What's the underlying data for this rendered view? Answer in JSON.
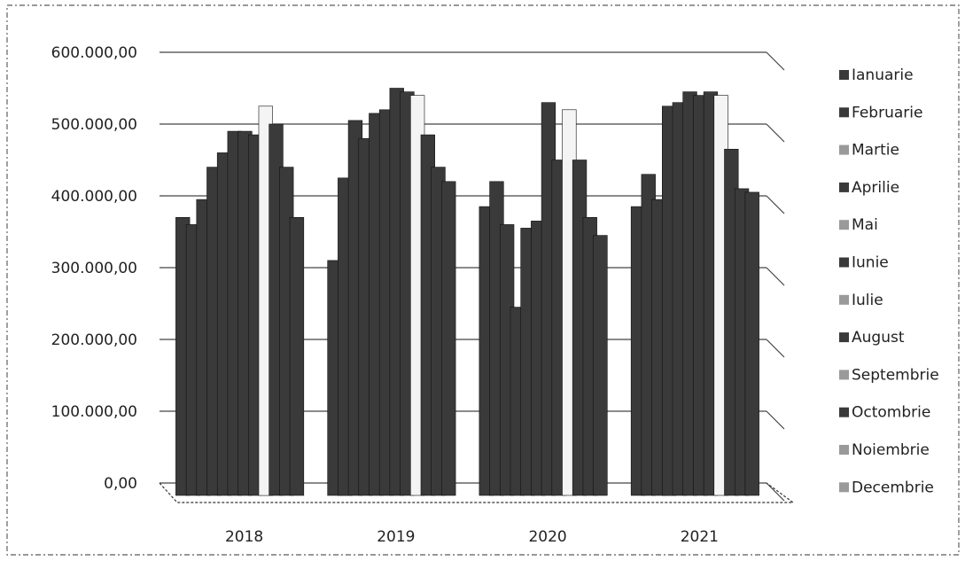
{
  "chart_data": {
    "type": "bar",
    "title": "",
    "xlabel": "",
    "ylabel": "",
    "ylim": [
      0,
      600000
    ],
    "yticks": [
      "0,00",
      "100.000,00",
      "200.000,00",
      "300.000,00",
      "400.000,00",
      "500.000,00",
      "600.000,00"
    ],
    "categories": [
      "2018",
      "2019",
      "2020",
      "2021"
    ],
    "legend_position": "right",
    "grid": true,
    "bar_color": "#3a3a3a",
    "series": [
      {
        "name": "Ianuarie",
        "values": [
          370000,
          310000,
          385000,
          385000
        ]
      },
      {
        "name": "Februarie",
        "values": [
          360000,
          425000,
          420000,
          430000
        ]
      },
      {
        "name": "Martie",
        "values": [
          395000,
          505000,
          360000,
          395000
        ]
      },
      {
        "name": "Aprilie",
        "values": [
          440000,
          480000,
          245000,
          525000
        ]
      },
      {
        "name": "Mai",
        "values": [
          460000,
          515000,
          355000,
          530000
        ]
      },
      {
        "name": "Iunie",
        "values": [
          490000,
          520000,
          365000,
          545000
        ]
      },
      {
        "name": "Iulie",
        "values": [
          490000,
          550000,
          530000,
          540000
        ]
      },
      {
        "name": "August",
        "values": [
          485000,
          545000,
          450000,
          545000
        ]
      },
      {
        "name": "Septembrie",
        "values": [
          525000,
          540000,
          520000,
          540000
        ]
      },
      {
        "name": "Octombrie",
        "values": [
          500000,
          485000,
          450000,
          465000
        ]
      },
      {
        "name": "Noiembrie",
        "values": [
          440000,
          440000,
          370000,
          410000
        ]
      },
      {
        "name": "Decembrie",
        "values": [
          370000,
          420000,
          345000,
          405000
        ]
      }
    ]
  }
}
